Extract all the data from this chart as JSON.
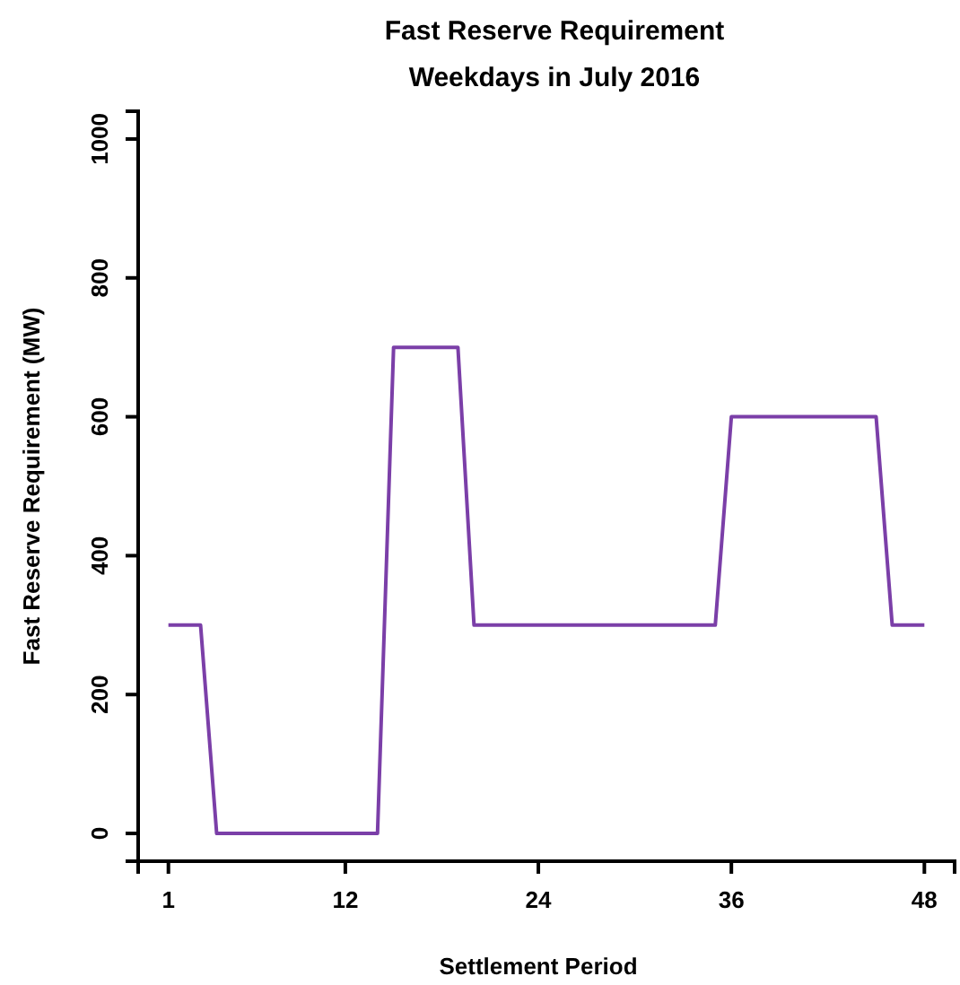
{
  "chart_data": {
    "type": "line",
    "title": "Fast Reserve Requirement",
    "subtitle": "Weekdays in July 2016",
    "xlabel": "Settlement Period",
    "ylabel": "Fast Reserve Requirement (MW)",
    "x": [
      1,
      2,
      3,
      4,
      5,
      6,
      7,
      8,
      9,
      10,
      11,
      12,
      13,
      14,
      15,
      16,
      17,
      18,
      19,
      20,
      21,
      22,
      23,
      24,
      25,
      26,
      27,
      28,
      29,
      30,
      31,
      32,
      33,
      34,
      35,
      36,
      37,
      38,
      39,
      40,
      41,
      42,
      43,
      44,
      45,
      46,
      47,
      48
    ],
    "series": [
      {
        "color": "#7b3fa8",
        "values": [
          300,
          300,
          300,
          0,
          0,
          0,
          0,
          0,
          0,
          0,
          0,
          0,
          0,
          0,
          700,
          700,
          700,
          700,
          700,
          300,
          300,
          300,
          300,
          300,
          300,
          300,
          300,
          300,
          300,
          300,
          300,
          300,
          300,
          300,
          300,
          600,
          600,
          600,
          600,
          600,
          600,
          600,
          600,
          600,
          600,
          300,
          300,
          300
        ]
      }
    ],
    "xlim": [
      -0.88,
      49.88
    ],
    "ylim": [
      -40,
      1040
    ],
    "xticks": [
      1,
      12,
      24,
      36,
      48
    ],
    "yticks": [
      0,
      200,
      400,
      600,
      800,
      1000
    ],
    "marker": "none",
    "line_style": "solid"
  }
}
